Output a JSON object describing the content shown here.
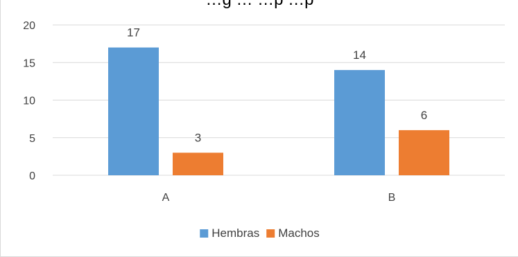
{
  "page_title_fragment": "…g … …p …p",
  "chart_data": {
    "type": "bar",
    "categories": [
      "A",
      "B"
    ],
    "series": [
      {
        "name": "Hembras",
        "values": [
          17,
          14
        ],
        "color": "#5b9bd5"
      },
      {
        "name": "Machos",
        "values": [
          3,
          6
        ],
        "color": "#ed7d31"
      }
    ],
    "ylim": [
      0,
      20
    ],
    "yticks": [
      0,
      5,
      10,
      15,
      20
    ],
    "grid": true,
    "legend_position": "bottom",
    "data_labels": true,
    "title": "",
    "xlabel": "",
    "ylabel": ""
  }
}
